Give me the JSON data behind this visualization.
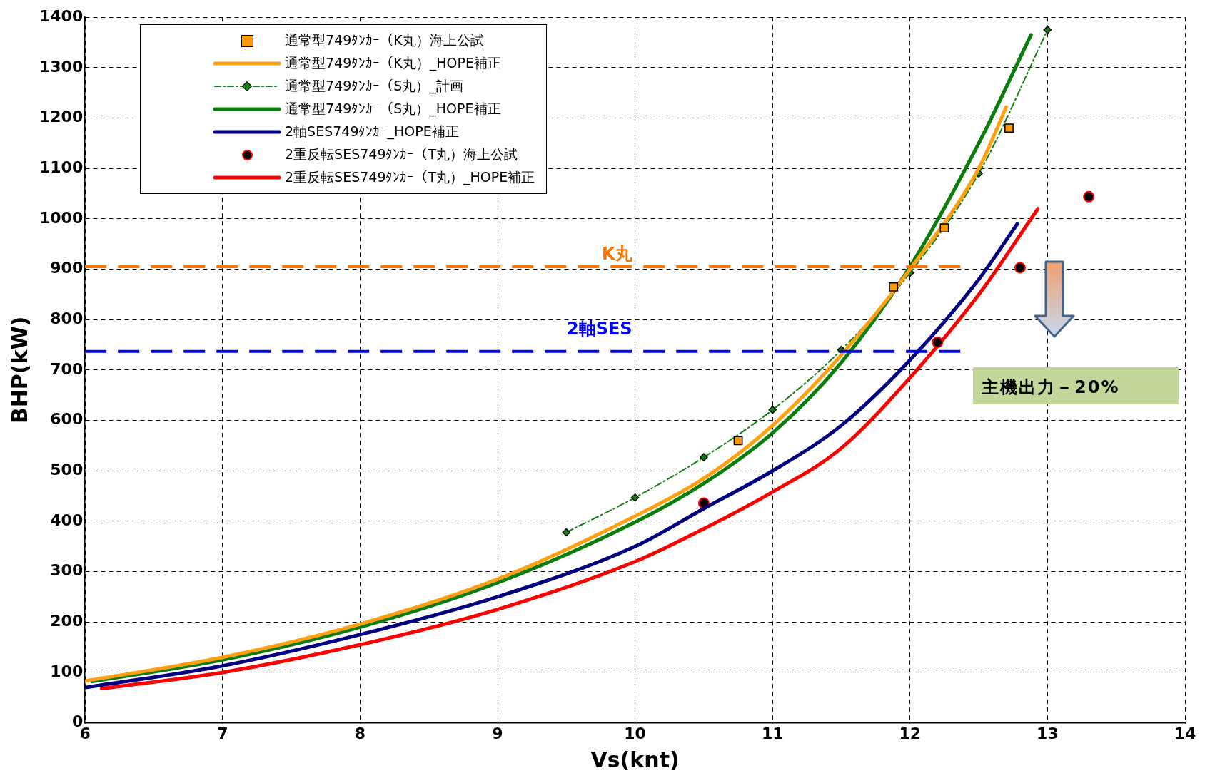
{
  "chart_data": {
    "type": "line",
    "xlabel": "Vs(knt)",
    "ylabel": "BHP(kW)",
    "xlim": [
      6,
      14
    ],
    "xticks": [
      6,
      7,
      8,
      9,
      10,
      11,
      12,
      13,
      14
    ],
    "ylim": [
      0,
      1400
    ],
    "yticks": [
      0,
      100,
      200,
      300,
      400,
      500,
      600,
      700,
      800,
      900,
      1000,
      1100,
      1200,
      1300,
      1400
    ],
    "grid": true,
    "legend": "top left",
    "series": [
      {
        "name": "通常型749ﾀﾝｶｰ（K丸）海上公試",
        "type": "scatter",
        "marker": "square",
        "color": "#ff9900",
        "x": [
          10.75,
          11.88,
          12.25,
          12.72
        ],
        "values": [
          560,
          865,
          982,
          1180
        ]
      },
      {
        "name": "通常型749ﾀﾝｶｰ（K丸）_HOPE補正",
        "marker": "none",
        "color": "#ffa010",
        "x": [
          6,
          7,
          8,
          9,
          10,
          10.5,
          11,
          11.5,
          12,
          12.5,
          12.7
        ],
        "values": [
          83,
          130,
          196,
          285,
          410,
          485,
          590,
          730,
          900,
          1100,
          1222
        ]
      },
      {
        "name": "通常型749ﾀﾝｶｰ（S丸）_計画",
        "marker": "diamond",
        "line_style": "dashed",
        "color": "#108010",
        "x": [
          9.5,
          10,
          10.5,
          11,
          11.5,
          12,
          12.5,
          13
        ],
        "values": [
          378,
          447,
          527,
          621,
          740,
          893,
          1090,
          1375
        ]
      },
      {
        "name": "通常型749ﾀﾝｶｰ（S丸）_HOPE補正",
        "marker": "none",
        "color": "#0a7d0a",
        "x": [
          6.05,
          7,
          8,
          9,
          10,
          10.5,
          11,
          11.5,
          12,
          12.5,
          12.88
        ],
        "values": [
          82,
          125,
          190,
          278,
          398,
          475,
          575,
          715,
          905,
          1150,
          1365
        ]
      },
      {
        "name": "2軸SES749ﾀﾝｶｰ_HOPE補正",
        "marker": "none",
        "color": "#000080",
        "x": [
          6,
          7,
          8,
          9,
          10,
          10.5,
          11,
          11.5,
          12,
          12.5,
          12.78
        ],
        "values": [
          70,
          113,
          175,
          250,
          350,
          425,
          500,
          590,
          720,
          880,
          990
        ]
      },
      {
        "name": "2重反転SES749ﾀﾝｶｰ（T丸）海上公試",
        "type": "scatter",
        "marker": "circle",
        "color": "#000000",
        "x": [
          10.5,
          12.2,
          12.8,
          13.3
        ],
        "values": [
          436,
          755,
          903,
          1044
        ]
      },
      {
        "name": "2重反転SES749ﾀﾝｶｰ（T丸）_HOPE補正",
        "marker": "none",
        "color": "#ff0000",
        "x": [
          6.12,
          7,
          8,
          9,
          10,
          10.5,
          11,
          11.5,
          12,
          12.5,
          12.93
        ],
        "values": [
          68,
          100,
          155,
          225,
          320,
          385,
          458,
          545,
          685,
          850,
          1020
        ]
      }
    ],
    "ref_lines": [
      {
        "axis": "y",
        "value": 905,
        "label": "K丸",
        "color": "#ff7300",
        "line_style": "dashed"
      },
      {
        "axis": "y",
        "value": 737,
        "label": "2軸SES",
        "color": "#0000ff",
        "line_style": "dashed"
      }
    ],
    "annotations": [
      "主機出力－20%"
    ]
  }
}
